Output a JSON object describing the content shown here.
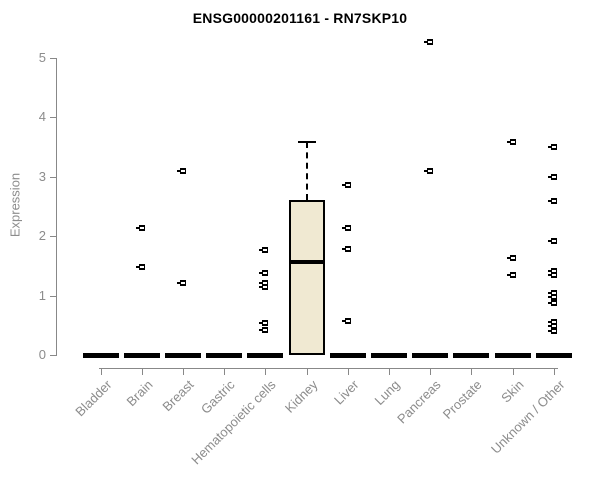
{
  "chart_data": {
    "type": "boxplot",
    "title": "ENSG00000201161 - RN7SKP10",
    "xlabel": "",
    "ylabel": "Expression",
    "ylim": [
      0,
      5
    ],
    "yticks": [
      0,
      1,
      2,
      3,
      4,
      5
    ],
    "grid": false,
    "legend": false,
    "colors": {
      "box_fill": "#f0e9d2",
      "box_border": "#000000",
      "median": "#000000",
      "points": "#000000",
      "axis": "#888888",
      "axis_text": "#8c8c8c",
      "title_text": "#000000"
    },
    "categories": [
      "Bladder",
      "Brain",
      "Breast",
      "Gastric",
      "Hematopoietic cells",
      "Kidney",
      "Liver",
      "Lung",
      "Pancreas",
      "Prostate",
      "Skin",
      "Unknown / Other"
    ],
    "boxes": [
      {
        "category": "Bladder",
        "q1": 0,
        "median": 0,
        "q3": 0,
        "whisker_low": 0,
        "whisker_high": 0,
        "outliers": []
      },
      {
        "category": "Brain",
        "q1": 0,
        "median": 0,
        "q3": 0,
        "whisker_low": 0,
        "whisker_high": 0,
        "outliers": [
          2.14,
          1.48
        ]
      },
      {
        "category": "Breast",
        "q1": 0,
        "median": 0,
        "q3": 0,
        "whisker_low": 0,
        "whisker_high": 0,
        "outliers": [
          3.1,
          1.21
        ]
      },
      {
        "category": "Gastric",
        "q1": 0,
        "median": 0,
        "q3": 0,
        "whisker_low": 0,
        "whisker_high": 0,
        "outliers": []
      },
      {
        "category": "Hematopoietic cells",
        "q1": 0,
        "median": 0,
        "q3": 0,
        "whisker_low": 0,
        "whisker_high": 0,
        "outliers": [
          1.77,
          1.38,
          1.22,
          1.15,
          0.54,
          0.42
        ]
      },
      {
        "category": "Kidney",
        "q1": 0,
        "median": 1.57,
        "q3": 2.61,
        "whisker_low": 0,
        "whisker_high": 3.58,
        "outliers": []
      },
      {
        "category": "Liver",
        "q1": 0,
        "median": 0,
        "q3": 0,
        "whisker_low": 0,
        "whisker_high": 0,
        "outliers": [
          2.87,
          2.14,
          1.78,
          0.58
        ]
      },
      {
        "category": "Lung",
        "q1": 0,
        "median": 0,
        "q3": 0,
        "whisker_low": 0,
        "whisker_high": 0,
        "outliers": []
      },
      {
        "category": "Pancreas",
        "q1": 0,
        "median": 0,
        "q3": 0,
        "whisker_low": 0,
        "whisker_high": 0,
        "outliers": [
          5.27,
          3.1
        ]
      },
      {
        "category": "Prostate",
        "q1": 0,
        "median": 0,
        "q3": 0,
        "whisker_low": 0,
        "whisker_high": 0,
        "outliers": []
      },
      {
        "category": "Skin",
        "q1": 0,
        "median": 0,
        "q3": 0,
        "whisker_low": 0,
        "whisker_high": 0,
        "outliers": [
          3.58,
          1.63,
          1.35
        ]
      },
      {
        "category": "Unknown / Other",
        "q1": 0,
        "median": 0,
        "q3": 0,
        "whisker_low": 0,
        "whisker_high": 0,
        "outliers": [
          3.5,
          3.0,
          2.6,
          1.92,
          1.42,
          1.35,
          1.05,
          0.97,
          0.88,
          0.55,
          0.48,
          0.4
        ]
      }
    ]
  }
}
